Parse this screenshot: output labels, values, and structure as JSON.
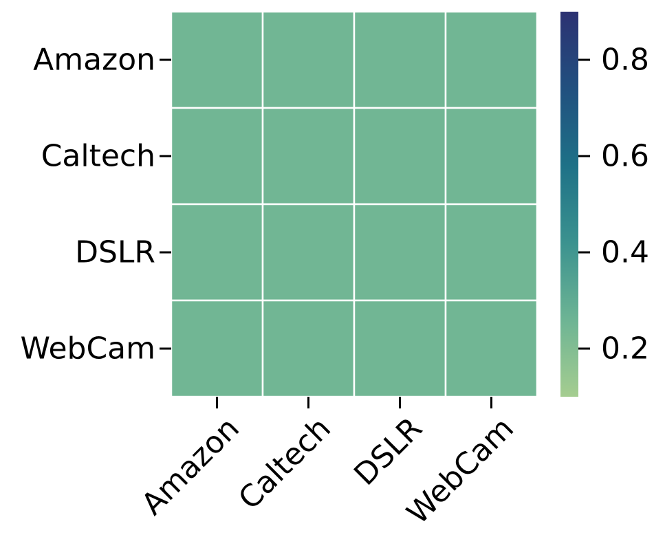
{
  "chart_data": {
    "type": "heatmap",
    "title": "",
    "xlabel": "",
    "ylabel": "",
    "x_categories": [
      "Amazon",
      "Caltech",
      "DSLR",
      "WebCam"
    ],
    "y_categories": [
      "Amazon",
      "Caltech",
      "DSLR",
      "WebCam"
    ],
    "values": [
      [
        0.25,
        0.25,
        0.25,
        0.25
      ],
      [
        0.25,
        0.25,
        0.25,
        0.25
      ],
      [
        0.25,
        0.25,
        0.25,
        0.25
      ],
      [
        0.25,
        0.25,
        0.25,
        0.25
      ]
    ],
    "colorbar": {
      "range": [
        0.1,
        0.9
      ],
      "ticks": [
        0.2,
        0.4,
        0.6,
        0.8
      ],
      "tick_labels": [
        "0.2",
        "0.4",
        "0.6",
        "0.8"
      ],
      "colormap": "crest",
      "color_stops": [
        "#a5cd90",
        "#6db494",
        "#3b928f",
        "#1e7187",
        "#21507f",
        "#2c3172"
      ]
    },
    "cell_border_color": "#ffffff",
    "grid": false,
    "legend": "colorbar-right"
  }
}
